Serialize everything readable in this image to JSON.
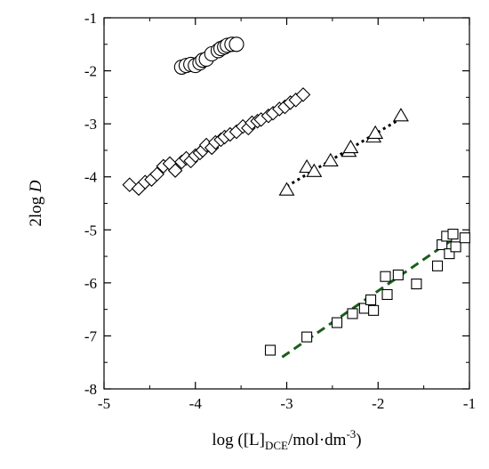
{
  "chart_data": {
    "type": "scatter",
    "title": "",
    "ylabel": "2log D",
    "ylabel_parts": {
      "prefix": "2log ",
      "italic": "D"
    },
    "xlabel": "log ([L]DCE/mol·dm-3)",
    "xlabel_parts": {
      "pre": "log ([L]",
      "sub": "DCE",
      "mid": "/mol·dm",
      "sup": "-3",
      "post": ")"
    },
    "xlim": [
      -5,
      -1
    ],
    "ylim": [
      -8,
      -1
    ],
    "x_ticks": [
      -5,
      -4,
      -3,
      -2,
      -1
    ],
    "y_ticks": [
      -8,
      -7,
      -6,
      -5,
      -4,
      -3,
      -2,
      -1
    ],
    "x_tick_labels": [
      "-5",
      "-4",
      "-3",
      "-2",
      "-1"
    ],
    "y_tick_labels": [
      "-8",
      "-7",
      "-6",
      "-5",
      "-4",
      "-3",
      "-2",
      "-1"
    ],
    "grid": false,
    "series": [
      {
        "marker": "circle",
        "points": [
          [
            -4.15,
            -1.93
          ],
          [
            -4.1,
            -1.9
          ],
          [
            -4.05,
            -1.88
          ],
          [
            -4.0,
            -1.9
          ],
          [
            -3.95,
            -1.85
          ],
          [
            -3.92,
            -1.8
          ],
          [
            -3.88,
            -1.78
          ],
          [
            -3.82,
            -1.68
          ],
          [
            -3.75,
            -1.62
          ],
          [
            -3.72,
            -1.58
          ],
          [
            -3.68,
            -1.55
          ],
          [
            -3.65,
            -1.52
          ],
          [
            -3.6,
            -1.5
          ],
          [
            -3.55,
            -1.5
          ]
        ]
      },
      {
        "marker": "diamond",
        "points": [
          [
            -4.72,
            -4.15
          ],
          [
            -4.62,
            -4.22
          ],
          [
            -4.55,
            -4.1
          ],
          [
            -4.48,
            -4.05
          ],
          [
            -4.42,
            -3.95
          ],
          [
            -4.35,
            -3.8
          ],
          [
            -4.28,
            -3.75
          ],
          [
            -4.22,
            -3.88
          ],
          [
            -4.15,
            -3.72
          ],
          [
            -4.1,
            -3.65
          ],
          [
            -4.05,
            -3.7
          ],
          [
            -4.0,
            -3.6
          ],
          [
            -3.95,
            -3.55
          ],
          [
            -3.92,
            -3.5
          ],
          [
            -3.88,
            -3.4
          ],
          [
            -3.82,
            -3.45
          ],
          [
            -3.78,
            -3.35
          ],
          [
            -3.72,
            -3.3
          ],
          [
            -3.68,
            -3.25
          ],
          [
            -3.62,
            -3.2
          ],
          [
            -3.55,
            -3.15
          ],
          [
            -3.48,
            -3.05
          ],
          [
            -3.42,
            -3.08
          ],
          [
            -3.38,
            -2.98
          ],
          [
            -3.32,
            -2.95
          ],
          [
            -3.28,
            -2.92
          ],
          [
            -3.2,
            -2.85
          ],
          [
            -3.15,
            -2.8
          ],
          [
            -3.08,
            -2.72
          ],
          [
            -3.02,
            -2.68
          ],
          [
            -2.96,
            -2.6
          ],
          [
            -2.9,
            -2.55
          ],
          [
            -2.82,
            -2.45
          ]
        ]
      },
      {
        "marker": "triangle",
        "points": [
          [
            -3.0,
            -4.25
          ],
          [
            -2.78,
            -3.82
          ],
          [
            -2.7,
            -3.9
          ],
          [
            -2.52,
            -3.7
          ],
          [
            -2.32,
            -3.52
          ],
          [
            -2.3,
            -3.45
          ],
          [
            -2.05,
            -3.25
          ],
          [
            -2.03,
            -3.18
          ],
          [
            -1.75,
            -2.85
          ]
        ]
      },
      {
        "marker": "square",
        "points": [
          [
            -3.18,
            -7.27
          ],
          [
            -2.78,
            -7.02
          ],
          [
            -2.45,
            -6.75
          ],
          [
            -2.28,
            -6.58
          ],
          [
            -2.15,
            -6.48
          ],
          [
            -2.08,
            -6.32
          ],
          [
            -2.05,
            -6.52
          ],
          [
            -1.92,
            -5.88
          ],
          [
            -1.9,
            -6.22
          ],
          [
            -1.78,
            -5.85
          ],
          [
            -1.58,
            -6.02
          ],
          [
            -1.35,
            -5.68
          ],
          [
            -1.3,
            -5.28
          ],
          [
            -1.25,
            -5.12
          ],
          [
            -1.22,
            -5.45
          ],
          [
            -1.18,
            -5.08
          ],
          [
            -1.15,
            -5.32
          ],
          [
            -1.05,
            -5.15
          ]
        ]
      }
    ],
    "fit_lines": [
      {
        "dash": "dotted",
        "color": "#000000",
        "from": [
          -3.0,
          -4.18
        ],
        "to": [
          -1.75,
          -2.9
        ]
      },
      {
        "dash": "dashed",
        "color": "#1a5e1a",
        "from": [
          -3.05,
          -7.4
        ],
        "to": [
          -1.2,
          -5.2
        ]
      }
    ]
  }
}
